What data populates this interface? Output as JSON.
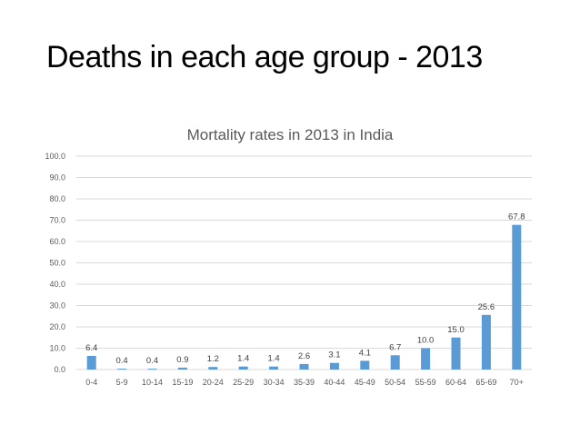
{
  "slide": {
    "title": "Deaths in each age group - 2013"
  },
  "colors": {
    "bar": "#5b9bd5",
    "gridline": "#d9d9d9",
    "text": "#595959"
  },
  "chart_data": {
    "type": "bar",
    "title": "Mortality rates in 2013 in India",
    "xlabel": "",
    "ylabel": "",
    "ylim": [
      0,
      100
    ],
    "yticks": [
      "0.0",
      "10.0",
      "20.0",
      "30.0",
      "40.0",
      "50.0",
      "60.0",
      "70.0",
      "80.0",
      "90.0",
      "100.0"
    ],
    "grid": true,
    "legend": "none",
    "categories": [
      "0-4",
      "5-9",
      "10-14",
      "15-19",
      "20-24",
      "25-29",
      "30-34",
      "35-39",
      "40-44",
      "45-49",
      "50-54",
      "55-59",
      "60-64",
      "65-69",
      "70+"
    ],
    "values": [
      6.4,
      0.4,
      0.4,
      0.9,
      1.2,
      1.4,
      1.4,
      2.6,
      3.1,
      4.1,
      6.7,
      10.0,
      15.0,
      25.6,
      67.8
    ],
    "data_labels": [
      "6.4",
      "0.4",
      "0.4",
      "0.9",
      "1.2",
      "1.4",
      "1.4",
      "2.6",
      "3.1",
      "4.1",
      "6.7",
      "10.0",
      "15.0",
      "25.6",
      "67.8"
    ]
  }
}
